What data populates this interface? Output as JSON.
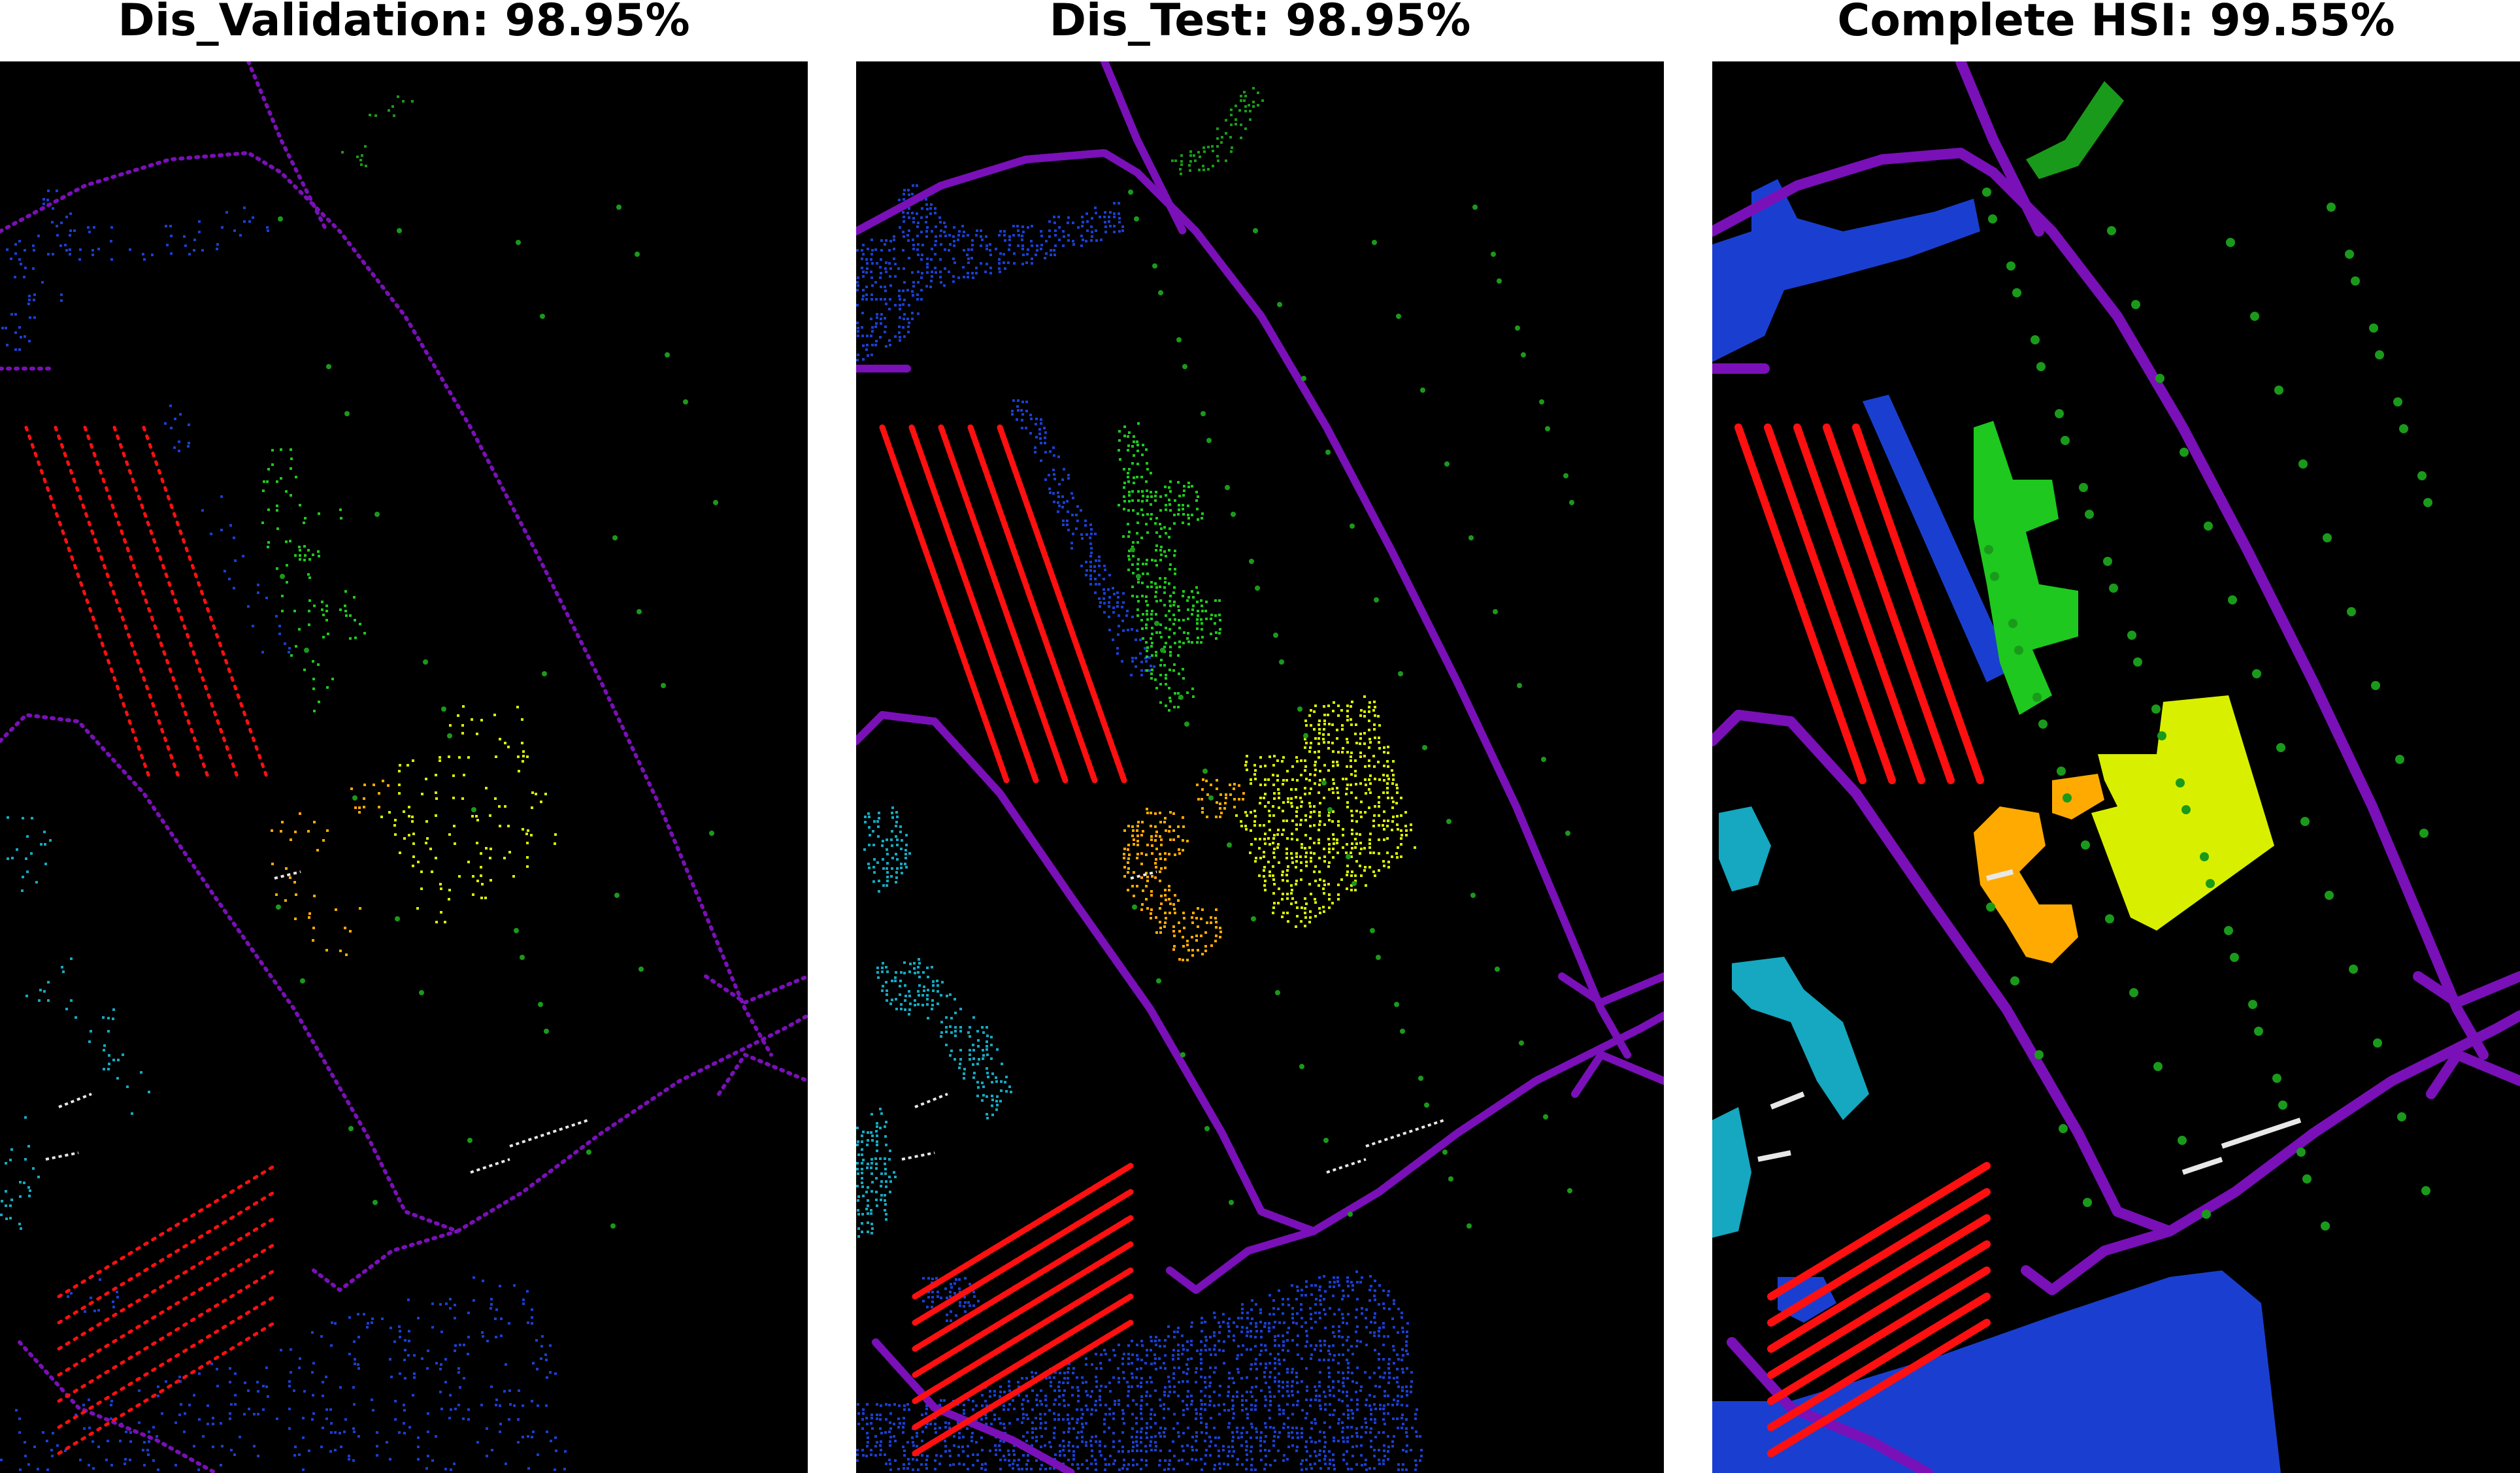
{
  "panels": [
    {
      "title": "Dis_Validation: 98.95%",
      "kind": "sparse"
    },
    {
      "title": "Dis_Test: 98.95%",
      "kind": "medium"
    },
    {
      "title": "Complete HSI: 99.55%",
      "kind": "full"
    }
  ],
  "class_colors": {
    "road": "#7a10b8",
    "lake_blue": "#1a3fd0",
    "parking_red": "#ff1010",
    "grass_green": "#1ec81e",
    "trees_green": "#1a9a1a",
    "yellow_field": "#d8f000",
    "orange_building": "#ffaa00",
    "cyan_building": "#15a8c0",
    "white_detail": "#e8e8e8"
  }
}
